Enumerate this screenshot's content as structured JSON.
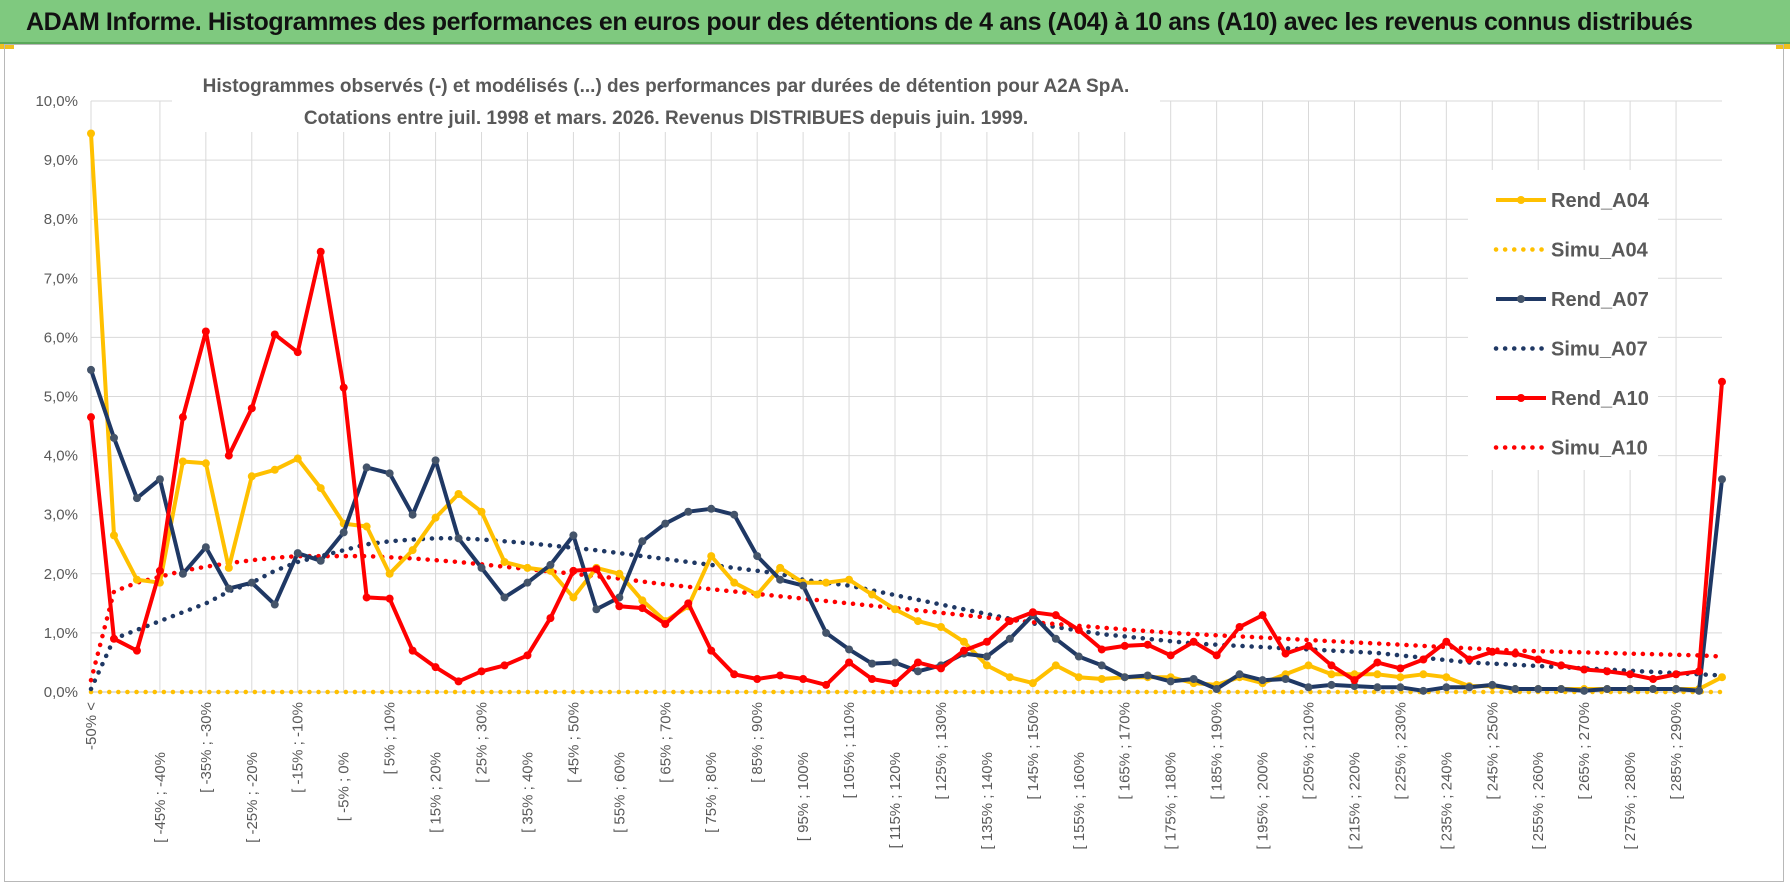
{
  "banner": {
    "title": "ADAM Informe. Histogrammes des performances en euros pour des détentions de 4 ans (A04) à 10 ans (A10) avec les revenus connus distribués"
  },
  "chart_data": {
    "type": "line",
    "title_line1": "Histogrammes observés (-) et modélisés (...) des performances par durées de détention pour A2A SpA.",
    "title_line2": "Cotations entre juil. 1998 et mars. 2026. Revenus DISTRIBUES depuis juin. 1999.",
    "ylim": [
      0,
      10
    ],
    "yticks": [
      "0,0%",
      "1,0%",
      "2,0%",
      "3,0%",
      "4,0%",
      "5,0%",
      "6,0%",
      "7,0%",
      "8,0%",
      "9,0%",
      "10,0%"
    ],
    "xtick_labels": [
      "-50% <",
      "[ -45% ; -40%",
      "[ -35% ; -30%",
      "[ -25% ; -20%",
      "[ -15% ; -10%",
      "[ -5% ; 0%",
      "[ 5% ; 10%",
      "[ 15% ; 20%",
      "[ 25% ; 30%",
      "[ 35% ; 40%",
      "[ 45% ; 50%",
      "[ 55% ; 60%",
      "[ 65% ; 70%",
      "[ 75% ; 80%",
      "[ 85% ; 90%",
      "[ 95% ; 100%",
      "[ 105% ; 110%",
      "[ 115% ; 120%",
      "[ 125% ; 130%",
      "[ 135% ; 140%",
      "[ 145% ; 150%",
      "[ 155% ; 160%",
      "[ 165% ; 170%",
      "[ 175% ; 180%",
      "[ 185% ; 190%",
      "[ 195% ; 200%",
      "[ 205% ; 210%",
      "[ 215% ; 220%",
      "[ 225% ; 230%",
      "[ 235% ; 240%",
      "[ 245% ; 250%",
      "[ 255% ; 260%",
      "[ 265% ; 270%",
      "[ 275% ; 280%",
      "[ 285% ; 290%"
    ],
    "series": [
      {
        "name": "Rend_A04",
        "color": "#ffc000",
        "style": "solid",
        "values": [
          9.45,
          2.65,
          1.9,
          1.85,
          3.9,
          3.87,
          2.1,
          3.65,
          3.76,
          3.95,
          3.45,
          2.85,
          2.8,
          2.0,
          2.4,
          2.95,
          3.35,
          3.05,
          2.2,
          2.1,
          2.05,
          1.6,
          2.1,
          2.0,
          1.55,
          1.2,
          1.45,
          2.3,
          1.85,
          1.65,
          2.1,
          1.85,
          1.85,
          1.9,
          1.65,
          1.4,
          1.2,
          1.1,
          0.85,
          0.45,
          0.25,
          0.15,
          0.45,
          0.25,
          0.22,
          0.25,
          0.25,
          0.25,
          0.15,
          0.12,
          0.25,
          0.15,
          0.3,
          0.45,
          0.3,
          0.3,
          0.3,
          0.25,
          0.3,
          0.25,
          0.1,
          0.1,
          0.05,
          0.05,
          0.05,
          0.05,
          0.05,
          0.05,
          0.05,
          0.05,
          0.05,
          0.25
        ]
      },
      {
        "name": "Simu_A04",
        "color": "#ffc000",
        "style": "dotted",
        "values": [
          0,
          0,
          0,
          0,
          0,
          0,
          0,
          0,
          0,
          0,
          0,
          0,
          0,
          0,
          0,
          0,
          0,
          0,
          0,
          0,
          0,
          0,
          0,
          0,
          0,
          0,
          0,
          0,
          0,
          0,
          0,
          0,
          0,
          0,
          0,
          0,
          0,
          0,
          0,
          0,
          0,
          0,
          0,
          0,
          0,
          0,
          0,
          0,
          0,
          0,
          0,
          0,
          0,
          0,
          0,
          0,
          0,
          0,
          0,
          0,
          0,
          0,
          0,
          0,
          0,
          0,
          0,
          0,
          0,
          0,
          0,
          0
        ]
      },
      {
        "name": "Rend_A07",
        "color": "#1f3864",
        "style": "solid",
        "values": [
          5.45,
          4.3,
          3.28,
          3.6,
          2.0,
          2.45,
          1.75,
          1.85,
          1.48,
          2.35,
          2.22,
          2.7,
          3.8,
          3.7,
          3.0,
          3.92,
          2.6,
          2.1,
          1.6,
          1.85,
          2.15,
          2.65,
          1.4,
          1.6,
          2.55,
          2.85,
          3.05,
          3.1,
          3.0,
          2.3,
          1.9,
          1.8,
          1.0,
          0.72,
          0.48,
          0.5,
          0.35,
          0.45,
          0.65,
          0.6,
          0.9,
          1.3,
          0.9,
          0.6,
          0.45,
          0.25,
          0.28,
          0.18,
          0.22,
          0.05,
          0.3,
          0.2,
          0.22,
          0.08,
          0.12,
          0.1,
          0.08,
          0.08,
          0.02,
          0.08,
          0.08,
          0.12,
          0.05,
          0.05,
          0.05,
          0.02,
          0.05,
          0.05,
          0.05,
          0.05,
          0.02,
          3.6
        ]
      },
      {
        "name": "Simu_A07",
        "color": "#1f3864",
        "style": "dotted",
        "values": [
          0.05,
          0.9,
          1.05,
          1.2,
          1.35,
          1.5,
          1.7,
          1.85,
          2.05,
          2.2,
          2.3,
          2.4,
          2.5,
          2.55,
          2.58,
          2.6,
          2.6,
          2.58,
          2.55,
          2.52,
          2.48,
          2.44,
          2.4,
          2.35,
          2.3,
          2.25,
          2.2,
          2.15,
          2.1,
          2.05,
          2.0,
          1.9,
          1.85,
          1.8,
          1.72,
          1.64,
          1.56,
          1.48,
          1.4,
          1.32,
          1.24,
          1.16,
          1.1,
          1.04,
          0.98,
          0.94,
          0.9,
          0.86,
          0.82,
          0.8,
          0.78,
          0.76,
          0.74,
          0.72,
          0.7,
          0.68,
          0.66,
          0.62,
          0.58,
          0.54,
          0.5,
          0.48,
          0.46,
          0.44,
          0.42,
          0.4,
          0.38,
          0.36,
          0.34,
          0.32,
          0.3,
          0.28
        ]
      },
      {
        "name": "Rend_A10",
        "color": "#ff0000",
        "style": "solid",
        "values": [
          4.65,
          0.9,
          0.7,
          2.05,
          4.65,
          6.1,
          4.0,
          4.8,
          6.05,
          5.75,
          7.45,
          5.15,
          1.6,
          1.58,
          0.7,
          0.42,
          0.18,
          0.35,
          0.45,
          0.62,
          1.25,
          2.05,
          2.08,
          1.45,
          1.42,
          1.15,
          1.5,
          0.7,
          0.3,
          0.22,
          0.28,
          0.22,
          0.12,
          0.5,
          0.22,
          0.15,
          0.5,
          0.4,
          0.7,
          0.85,
          1.2,
          1.35,
          1.3,
          1.05,
          0.72,
          0.78,
          0.8,
          0.62,
          0.85,
          0.62,
          1.1,
          1.3,
          0.65,
          0.78,
          0.45,
          0.2,
          0.5,
          0.4,
          0.55,
          0.85,
          0.55,
          0.68,
          0.65,
          0.55,
          0.45,
          0.38,
          0.35,
          0.3,
          0.22,
          0.3,
          0.35,
          5.25
        ]
      },
      {
        "name": "Simu_A10",
        "color": "#ff0000",
        "style": "dotted",
        "values": [
          0.2,
          1.7,
          1.85,
          1.95,
          2.05,
          2.12,
          2.18,
          2.23,
          2.27,
          2.3,
          2.3,
          2.3,
          2.3,
          2.28,
          2.26,
          2.23,
          2.2,
          2.16,
          2.12,
          2.08,
          2.04,
          2.0,
          1.96,
          1.92,
          1.87,
          1.82,
          1.78,
          1.74,
          1.7,
          1.66,
          1.62,
          1.58,
          1.54,
          1.5,
          1.46,
          1.42,
          1.38,
          1.34,
          1.3,
          1.26,
          1.22,
          1.18,
          1.15,
          1.12,
          1.09,
          1.06,
          1.03,
          1.0,
          0.98,
          0.96,
          0.94,
          0.92,
          0.9,
          0.88,
          0.86,
          0.84,
          0.82,
          0.8,
          0.78,
          0.76,
          0.74,
          0.72,
          0.7,
          0.69,
          0.68,
          0.67,
          0.66,
          0.65,
          0.64,
          0.63,
          0.62,
          0.6
        ]
      }
    ]
  }
}
